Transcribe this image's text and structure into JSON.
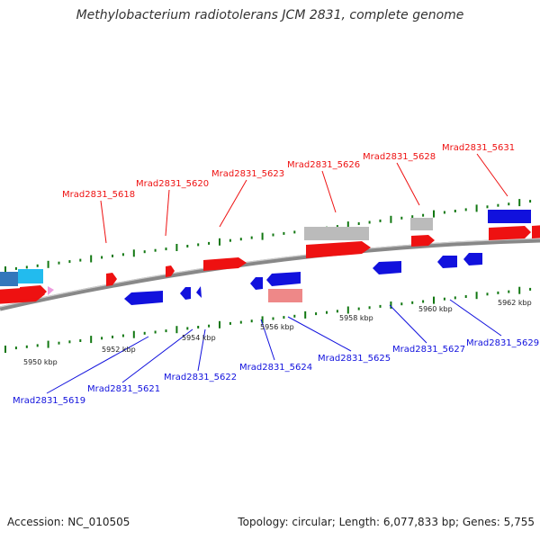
{
  "title": "Methylobacterium radiotolerans JCM 2831, complete genome",
  "footer": {
    "accession": "Accession: NC_010505",
    "topology": "Topology: circular; Length: 6,077,833 bp; Genes: 5,755"
  },
  "colors": {
    "forward_strand": "#ee1111",
    "reverse_strand": "#1111dd",
    "backbone": "#888888",
    "tick": "#117711",
    "pseudo": "#bbbbbb"
  },
  "scale_labels": [
    "5950 kbp",
    "5952 kbp",
    "5954 kbp",
    "5956 kbp",
    "5958 kbp",
    "5960 kbp",
    "5962 kbp"
  ],
  "forward_gene_labels": [
    "Mrad2831_5618",
    "Mrad2831_5620",
    "Mrad2831_5623",
    "Mrad2831_5626",
    "Mrad2831_5628",
    "Mrad2831_5631"
  ],
  "reverse_gene_labels": [
    "Mrad2831_5619",
    "Mrad2831_5621",
    "Mrad2831_5622",
    "Mrad2831_5624",
    "Mrad2831_5625",
    "Mrad2831_5627",
    "Mrad2831_5629"
  ]
}
